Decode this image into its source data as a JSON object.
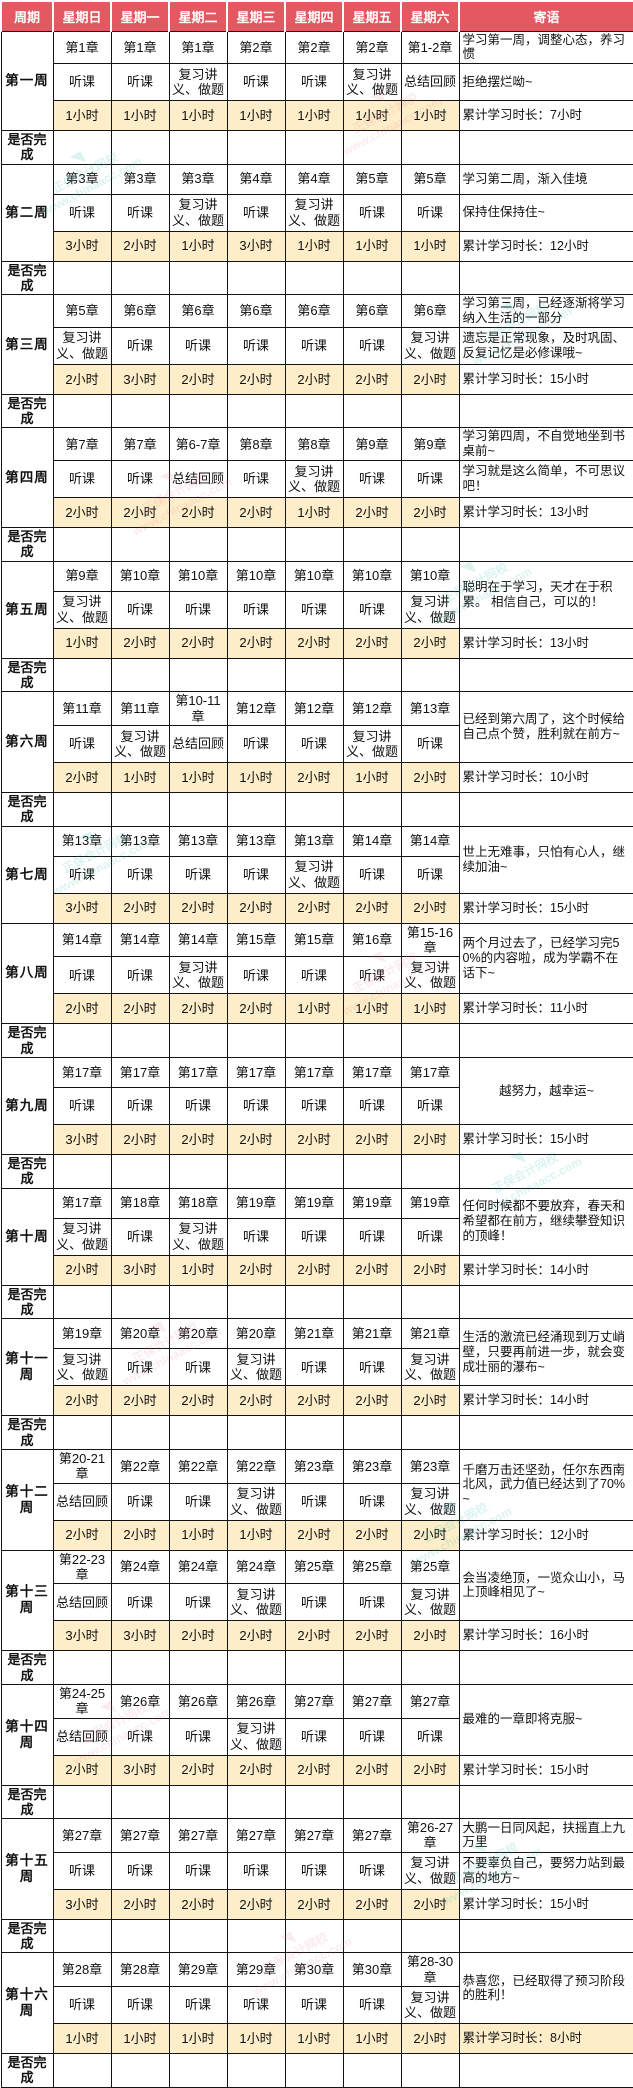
{
  "colors": {
    "header_bg": "#e45862",
    "hours_bg": "#fdeec9",
    "border": "#141414"
  },
  "header": {
    "columns": [
      "周期",
      "星期日",
      "星期一",
      "星期二",
      "星期三",
      "星期四",
      "星期五",
      "星期六",
      "寄语"
    ]
  },
  "check_label": "是否完成",
  "watermark": {
    "brand": "正保会计网校",
    "site": "www.chinaacc.com"
  },
  "weeks": [
    {
      "label": "第一周",
      "chapters": [
        "第1章",
        "第1章",
        "第1章",
        "第2章",
        "第2章",
        "第2章",
        "第1-2章"
      ],
      "activities": [
        "听课",
        "听课",
        "复习讲义、做题",
        "听课",
        "听课",
        "复习讲义、做题",
        "总结回顾"
      ],
      "hours": [
        "1小时",
        "1小时",
        "1小时",
        "1小时",
        "1小时",
        "1小时",
        "1小时"
      ],
      "message_top": "学习第一周，调整心态，养习惯",
      "message_mid": "拒绝摆烂呦~",
      "total": "累计学习时长：7小时",
      "total_highlight": false,
      "check_after": true
    },
    {
      "label": "第二周",
      "chapters": [
        "第3章",
        "第3章",
        "第3章",
        "第4章",
        "第4章",
        "第5章",
        "第5章"
      ],
      "activities": [
        "听课",
        "听课",
        "复习讲义、做题",
        "听课",
        "复习讲义、做题",
        "听课",
        "听课"
      ],
      "hours": [
        "3小时",
        "2小时",
        "1小时",
        "3小时",
        "1小时",
        "1小时",
        "1小时"
      ],
      "message_top": "学习第二周，渐入佳境",
      "message_mid": "保持住保持住~",
      "total": "累计学习时长：12小时",
      "total_highlight": false,
      "check_after": true
    },
    {
      "label": "第三周",
      "chapters": [
        "第5章",
        "第6章",
        "第6章",
        "第6章",
        "第6章",
        "第6章",
        "第6章"
      ],
      "activities": [
        "复习讲义、做题",
        "听课",
        "听课",
        "听课",
        "听课",
        "听课",
        "复习讲义、做题"
      ],
      "hours": [
        "2小时",
        "3小时",
        "2小时",
        "2小时",
        "2小时",
        "2小时",
        "2小时"
      ],
      "message_top": "学习第三周，已经逐渐将学习纳入生活的一部分",
      "message_mid": "遗忘是正常现象，及时巩固、反复记忆是必修课哦~",
      "total": "累计学习时长：15小时",
      "total_highlight": false,
      "check_after": true
    },
    {
      "label": "第四周",
      "chapters": [
        "第7章",
        "第7章",
        "第6-7章",
        "第8章",
        "第8章",
        "第9章",
        "第9章"
      ],
      "activities": [
        "听课",
        "听课",
        "总结回顾",
        "听课",
        "复习讲义、做题",
        "听课",
        "听课"
      ],
      "hours": [
        "2小时",
        "2小时",
        "2小时",
        "2小时",
        "1小时",
        "2小时",
        "2小时"
      ],
      "message_top": "学习第四周，不自觉地坐到书桌前~",
      "message_mid": "学习就是这么简单，不可思议吧！",
      "total": "累计学习时长：13小时",
      "total_highlight": false,
      "check_after": true
    },
    {
      "label": "第五周",
      "chapters": [
        "第9章",
        "第10章",
        "第10章",
        "第10章",
        "第10章",
        "第10章",
        "第10章"
      ],
      "activities": [
        "复习讲义、做题",
        "听课",
        "听课",
        "听课",
        "听课",
        "听课",
        "复习讲义、做题"
      ],
      "hours": [
        "1小时",
        "2小时",
        "2小时",
        "2小时",
        "2小时",
        "2小时",
        "2小时"
      ],
      "message_merged": "聪明在于学习，天才在于积累。 相信自己，可以的！",
      "message_center": false,
      "total": "累计学习时长：13小时",
      "total_highlight": false,
      "check_after": true
    },
    {
      "label": "第六周",
      "chapters": [
        "第11章",
        "第11章",
        "第10-11章",
        "第12章",
        "第12章",
        "第12章",
        "第13章"
      ],
      "activities": [
        "听课",
        "复习讲义、做题",
        "总结回顾",
        "听课",
        "听课",
        "复习讲义、做题",
        "听课"
      ],
      "hours": [
        "2小时",
        "1小时",
        "1小时",
        "1小时",
        "2小时",
        "1小时",
        "2小时"
      ],
      "message_merged": "已经到第六周了，这个时候给自己点个赞，胜利就在前方~",
      "message_center": false,
      "total": "累计学习时长：10小时",
      "total_highlight": false,
      "check_after": true
    },
    {
      "label": "第七周",
      "chapters": [
        "第13章",
        "第13章",
        "第13章",
        "第13章",
        "第13章",
        "第14章",
        "第14章"
      ],
      "activities": [
        "听课",
        "听课",
        "听课",
        "听课",
        "复习讲义、做题",
        "听课",
        "听课"
      ],
      "hours": [
        "3小时",
        "2小时",
        "2小时",
        "2小时",
        "2小时",
        "2小时",
        "2小时"
      ],
      "message_merged": "世上无难事，只怕有心人，继续加油~",
      "message_center": false,
      "total": "累计学习时长：15小时",
      "total_highlight": false,
      "check_after": false
    },
    {
      "label": "第八周",
      "chapters": [
        "第14章",
        "第14章",
        "第14章",
        "第15章",
        "第15章",
        "第16章",
        "第15-16章"
      ],
      "activities": [
        "听课",
        "听课",
        "复习讲义、做题",
        "听课",
        "听课",
        "听课",
        "复习讲义、做题"
      ],
      "hours": [
        "2小时",
        "2小时",
        "2小时",
        "2小时",
        "1小时",
        "1小时",
        "1小时"
      ],
      "message_merged": "两个月过去了，已经学习完50%的内容啦，成为学霸不在话下~",
      "message_center": false,
      "total": "累计学习时长：11小时",
      "total_highlight": false,
      "check_after": true
    },
    {
      "label": "第九周",
      "chapters": [
        "第17章",
        "第17章",
        "第17章",
        "第17章",
        "第17章",
        "第17章",
        "第17章"
      ],
      "activities": [
        "听课",
        "听课",
        "听课",
        "听课",
        "听课",
        "听课",
        "听课"
      ],
      "hours": [
        "3小时",
        "2小时",
        "2小时",
        "2小时",
        "2小时",
        "2小时",
        "2小时"
      ],
      "message_merged": "越努力，越幸运~",
      "message_center": true,
      "total": "累计学习时长：15小时",
      "total_highlight": false,
      "check_after": true
    },
    {
      "label": "第十周",
      "chapters": [
        "第17章",
        "第18章",
        "第18章",
        "第19章",
        "第19章",
        "第19章",
        "第19章"
      ],
      "activities": [
        "复习讲义、做题",
        "听课",
        "复习讲义、做题",
        "听课",
        "听课",
        "听课",
        "听课"
      ],
      "hours": [
        "2小时",
        "3小时",
        "1小时",
        "2小时",
        "2小时",
        "2小时",
        "2小时"
      ],
      "message_merged": "任何时候都不要放弃，春天和希望都在前方，继续攀登知识的顶峰！",
      "message_center": false,
      "total": "累计学习时长：14小时",
      "total_highlight": false,
      "check_after": true
    },
    {
      "label": "第十一周",
      "chapters": [
        "第19章",
        "第20章",
        "第20章",
        "第20章",
        "第21章",
        "第21章",
        "第21章"
      ],
      "activities": [
        "复习讲义、做题",
        "听课",
        "听课",
        "复习讲义、做题",
        "听课",
        "听课",
        "复习讲义、做题"
      ],
      "hours": [
        "2小时",
        "2小时",
        "2小时",
        "2小时",
        "2小时",
        "2小时",
        "2小时"
      ],
      "message_merged": "生活的激流已经涌现到万丈峭壁，只要再前进一步，就会变成壮丽的瀑布~",
      "message_center": false,
      "total": "累计学习时长：14小时",
      "total_highlight": false,
      "check_after": true
    },
    {
      "label": "第十二周",
      "chapters": [
        "第20-21章",
        "第22章",
        "第22章",
        "第22章",
        "第23章",
        "第23章",
        "第23章"
      ],
      "activities": [
        "总结回顾",
        "听课",
        "听课",
        "复习讲义、做题",
        "听课",
        "听课",
        "复习讲义、做题"
      ],
      "hours": [
        "2小时",
        "2小时",
        "1小时",
        "1小时",
        "2小时",
        "2小时",
        "2小时"
      ],
      "message_merged": "千磨万击还坚劲，任尔东西南北风，武力值已经达到了70%~",
      "message_center": false,
      "total": "累计学习时长：12小时",
      "total_highlight": false,
      "check_after": false
    },
    {
      "label": "第十三周",
      "chapters": [
        "第22-23章",
        "第24章",
        "第24章",
        "第24章",
        "第25章",
        "第25章",
        "第25章"
      ],
      "activities": [
        "总结回顾",
        "听课",
        "听课",
        "复习讲义、做题",
        "听课",
        "听课",
        "复习讲义、做题"
      ],
      "hours": [
        "3小时",
        "3小时",
        "2小时",
        "2小时",
        "2小时",
        "2小时",
        "2小时"
      ],
      "message_merged": "会当凌绝顶，一览众山小，马上顶峰相见了~",
      "message_center": false,
      "total": "累计学习时长：16小时",
      "total_highlight": false,
      "check_after": true
    },
    {
      "label": "第十四周",
      "chapters": [
        "第24-25章",
        "第26章",
        "第26章",
        "第26章",
        "第27章",
        "第27章",
        "第27章"
      ],
      "activities": [
        "总结回顾",
        "听课",
        "听课",
        "复习讲义、做题",
        "听课",
        "听课",
        "听课"
      ],
      "hours": [
        "2小时",
        "3小时",
        "2小时",
        "2小时",
        "2小时",
        "2小时",
        "2小时"
      ],
      "message_merged": "最难的一章即将克服~",
      "message_center": false,
      "total": "累计学习时长：15小时",
      "total_highlight": false,
      "check_after": true
    },
    {
      "label": "第十五周",
      "chapters": [
        "第27章",
        "第27章",
        "第27章",
        "第27章",
        "第27章",
        "第27章",
        "第26-27章"
      ],
      "activities": [
        "听课",
        "听课",
        "听课",
        "听课",
        "听课",
        "听课",
        "复习讲义、做题"
      ],
      "hours": [
        "3小时",
        "2小时",
        "2小时",
        "2小时",
        "2小时",
        "2小时",
        "2小时"
      ],
      "message_top": "大鹏一日同风起，扶摇直上九万里",
      "message_mid": "不要辜负自己，要努力站到最高的地方~",
      "total": "累计学习时长：15小时",
      "total_highlight": false,
      "check_after": true
    },
    {
      "label": "第十六周",
      "chapters": [
        "第28章",
        "第28章",
        "第29章",
        "第29章",
        "第30章",
        "第30章",
        "第28-30章"
      ],
      "activities": [
        "听课",
        "听课",
        "听课",
        "听课",
        "听课",
        "听课",
        "复习讲义、做题"
      ],
      "hours": [
        "1小时",
        "1小时",
        "1小时",
        "1小时",
        "1小时",
        "1小时",
        "2小时"
      ],
      "message_merged": "恭喜您，已经取得了预习阶段的胜利！",
      "message_center": false,
      "total": "累计学习时长：8小时",
      "total_highlight": true,
      "check_after": true
    }
  ]
}
